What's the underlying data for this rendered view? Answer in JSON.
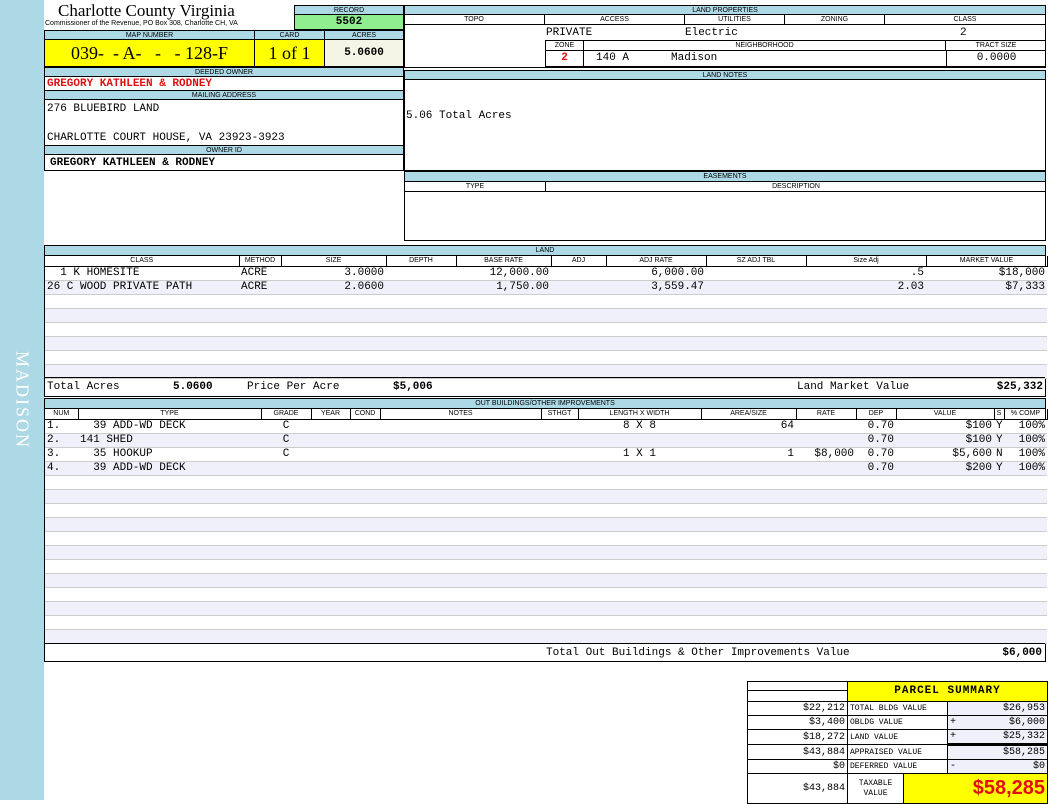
{
  "sidebar": {
    "label": "MADISON"
  },
  "header": {
    "title": "Charlotte County Virginia",
    "subtitle": "Commissioner of the Revenue, PO Box 308, Charlotte CH, VA"
  },
  "record": {
    "label": "RECORD",
    "value": "5502"
  },
  "map": {
    "label": "MAP NUMBER",
    "value": "039-  - A-   -   - 128-F"
  },
  "card": {
    "label": "CARD",
    "value": "1 of 1"
  },
  "acres": {
    "label": "ACRES",
    "value": "5.0600"
  },
  "owner": {
    "deeded_label": "DEEDED OWNER",
    "deeded": "GREGORY KATHLEEN & RODNEY",
    "mailing_label": "MAILING ADDRESS",
    "addr1": "276 BLUEBIRD LAND",
    "addr2": "CHARLOTTE COURT HOUSE, VA 23923-3923",
    "id_label": "OWNER ID",
    "id": "GREGORY KATHLEEN & RODNEY"
  },
  "land_properties": {
    "title": "LAND PROPERTIES",
    "topo_label": "TOPO",
    "access_label": "ACCESS",
    "utilities_label": "UTILITIES",
    "zoning_label": "ZONING",
    "class_label": "CLASS",
    "access": "PRIVATE",
    "utilities": "Electric",
    "class": "2",
    "zone_label": "ZONE",
    "neighborhood_label": "NEIGHBORHOOD",
    "tract_label": "TRACT SIZE",
    "zone": "2",
    "neighborhood_code": "140 A",
    "neighborhood": "Madison",
    "tract": "0.0000"
  },
  "land_notes": {
    "title": "LAND NOTES",
    "text": "5.06 Total Acres"
  },
  "easements": {
    "title": "EASEMENTS",
    "type_label": "TYPE",
    "desc_label": "DESCRIPTION"
  },
  "land": {
    "title": "LAND",
    "columns": [
      "CLASS",
      "METHOD",
      "SIZE",
      "DEPTH",
      "BASE RATE",
      "ADJ",
      "ADJ RATE",
      "SZ ADJ TBL",
      "Size Adj",
      "MARKET VALUE"
    ],
    "rows": [
      [
        "  1 K HOMESITE",
        "ACRE",
        "3.0000",
        "",
        "12,000.00",
        "",
        "6,000.00",
        "",
        ".5",
        "$18,000"
      ],
      [
        "26 C WOOD PRIVATE PATH",
        "ACRE",
        "2.0600",
        "",
        "1,750.00",
        "",
        "3,559.47",
        "",
        "2.03",
        "$7,333"
      ]
    ],
    "total_acres_label": "Total Acres",
    "total_acres": "5.0600",
    "ppa_label": "Price Per Acre",
    "ppa": "$5,006",
    "market_label": "Land Market Value",
    "market": "$25,332"
  },
  "outbuildings": {
    "title": "OUT BUILDINGS/OTHER IMPROVEMENTS",
    "columns": [
      "NUM",
      "TYPE",
      "GRADE",
      "YEAR",
      "COND",
      "NOTES",
      "STHGT",
      "LENGTH X WIDTH",
      "AREA/SIZE",
      "RATE",
      "DEP",
      "VALUE",
      "S",
      "% COMP"
    ],
    "rows": [
      [
        "1.",
        "  39 ADD-WD DECK",
        "C",
        "",
        "",
        "",
        "",
        "8 X 8",
        "64",
        "",
        "0.70",
        "$100",
        "Y",
        "100%"
      ],
      [
        "2.",
        "141 SHED",
        "C",
        "",
        "",
        "",
        "",
        "",
        "",
        "",
        "0.70",
        "$100",
        "Y",
        "100%"
      ],
      [
        "3.",
        "  35 HOOKUP",
        "C",
        "",
        "",
        "",
        "",
        "1 X 1",
        "1",
        "$8,000",
        "0.70",
        "$5,600",
        "N",
        "100%"
      ],
      [
        "4.",
        "  39 ADD-WD DECK",
        "",
        "",
        "",
        "",
        "",
        "",
        "",
        "",
        "0.70",
        "$200",
        "Y",
        "100%"
      ]
    ],
    "total_label": "Total Out Buildings & Other Improvements Value",
    "total": "$6,000"
  },
  "summary": {
    "title": "PARCEL SUMMARY",
    "rows": [
      {
        "prev": "$22,212",
        "label": "TOTAL BLDG VALUE",
        "op": "",
        "value": "$26,953"
      },
      {
        "prev": "$3,400",
        "label": "OBLDG VALUE",
        "op": "+",
        "value": "$6,000"
      },
      {
        "prev": "$18,272",
        "label": "LAND VALUE",
        "op": "+",
        "value": "$25,332"
      },
      {
        "prev": "$43,884",
        "label": "APPRAISED VALUE",
        "op": "",
        "value": "$58,285"
      },
      {
        "prev": "$0",
        "label": "DEFERRED VALUE",
        "op": "-",
        "value": "$0"
      }
    ],
    "taxable_prev": "$43,884",
    "taxable_label": "TAXABLE VALUE",
    "taxable": "$58,285"
  },
  "colors": {
    "header_blue": "#add8e6",
    "record_green": "#90ee90",
    "highlight_yellow": "#ffff00",
    "owner_red": "#e01010"
  }
}
